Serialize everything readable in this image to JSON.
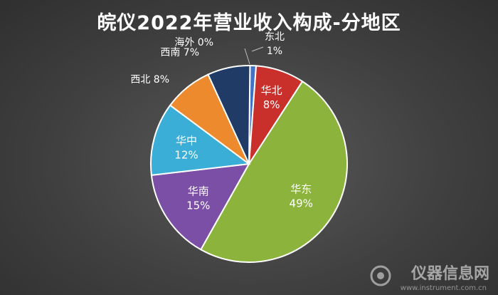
{
  "watermark": {
    "text": "仪器信息网",
    "sub": "www.instrument.com.cn"
  },
  "chart_data": {
    "type": "pie",
    "title": "皖仪2022年营业收入构成-分地区",
    "slices": [
      {
        "label": "东北",
        "value": 1,
        "display": "1%",
        "color": "#4472c4"
      },
      {
        "label": "华北",
        "value": 8,
        "display": "8%",
        "color": "#c9302c"
      },
      {
        "label": "华东",
        "value": 49,
        "display": "49%",
        "color": "#8cb43c"
      },
      {
        "label": "华南",
        "value": 15,
        "display": "15%",
        "color": "#7b4fa6"
      },
      {
        "label": "华中",
        "value": 12,
        "display": "12%",
        "color": "#3aaed6"
      },
      {
        "label": "西北",
        "value": 8,
        "display": "8%",
        "color": "#ee8a2e"
      },
      {
        "label": "西南",
        "value": 7,
        "display": "7%",
        "color": "#1f3b66"
      },
      {
        "label": "海外",
        "value": 0,
        "display": "0%",
        "color": "#9aa7c2"
      }
    ]
  }
}
